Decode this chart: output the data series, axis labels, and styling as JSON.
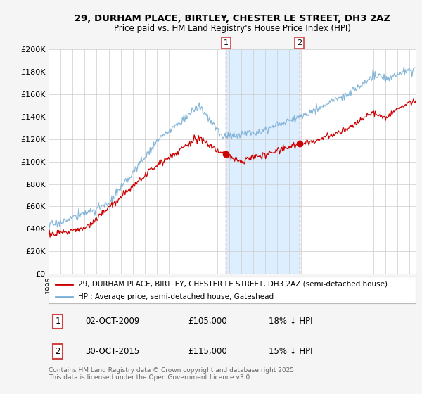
{
  "title_line1": "29, DURHAM PLACE, BIRTLEY, CHESTER LE STREET, DH3 2AZ",
  "title_line2": "Price paid vs. HM Land Registry's House Price Index (HPI)",
  "legend_line1": "29, DURHAM PLACE, BIRTLEY, CHESTER LE STREET, DH3 2AZ (semi-detached house)",
  "legend_line2": "HPI: Average price, semi-detached house, Gateshead",
  "transaction1_date": "02-OCT-2009",
  "transaction1_price": 105000,
  "transaction1_note": "18% ↓ HPI",
  "transaction2_date": "30-OCT-2015",
  "transaction2_price": 115000,
  "transaction2_note": "15% ↓ HPI",
  "copyright": "Contains HM Land Registry data © Crown copyright and database right 2025.\nThis data is licensed under the Open Government Licence v3.0.",
  "ylim": [
    0,
    200000
  ],
  "yticks": [
    0,
    20000,
    40000,
    60000,
    80000,
    100000,
    120000,
    140000,
    160000,
    180000,
    200000
  ],
  "red_color": "#cc0000",
  "blue_color": "#7aafd4",
  "shade_color": "#ddeeff",
  "vline_color": "#cc4444",
  "background_color": "#f5f5f5",
  "plot_bg_color": "#ffffff",
  "transaction1_x": 2009.75,
  "transaction2_x": 2015.83,
  "xmin": 1995,
  "xmax": 2025.5
}
